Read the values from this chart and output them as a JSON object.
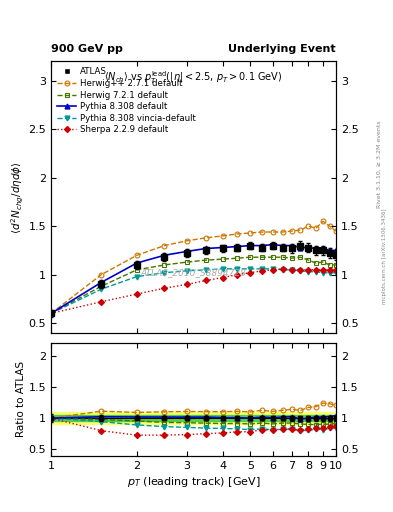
{
  "title_left": "900 GeV pp",
  "title_right": "Underlying Event",
  "watermark": "ATLAS_2010_S8894728",
  "ylabel_main": "$\\langle d^2 N_{chg}/d\\eta d\\phi \\rangle$",
  "ylabel_ratio": "Ratio to ATLAS",
  "xlabel": "$p_T$ (leading track) [GeV]",
  "xlim": [
    1.0,
    10.0
  ],
  "ylim_main": [
    0.4,
    3.2
  ],
  "ylim_ratio": [
    0.4,
    2.2
  ],
  "atlas_x": [
    1.0,
    1.5,
    2.0,
    2.5,
    3.0,
    3.5,
    4.0,
    4.5,
    5.0,
    5.5,
    6.0,
    6.5,
    7.0,
    7.5,
    8.0,
    8.5,
    9.0,
    9.5,
    10.0
  ],
  "atlas_y": [
    0.6,
    0.9,
    1.1,
    1.18,
    1.22,
    1.25,
    1.27,
    1.28,
    1.3,
    1.28,
    1.3,
    1.28,
    1.27,
    1.3,
    1.28,
    1.25,
    1.25,
    1.22,
    1.2
  ],
  "atlas_yerr": [
    0.04,
    0.04,
    0.04,
    0.04,
    0.04,
    0.04,
    0.04,
    0.04,
    0.04,
    0.04,
    0.04,
    0.04,
    0.05,
    0.05,
    0.05,
    0.05,
    0.05,
    0.05,
    0.05
  ],
  "atlas_band_yellow": 0.1,
  "atlas_band_green": 0.05,
  "herwig271_x": [
    1.0,
    1.5,
    2.0,
    2.5,
    3.0,
    3.5,
    4.0,
    4.5,
    5.0,
    5.5,
    6.0,
    6.5,
    7.0,
    7.5,
    8.0,
    8.5,
    9.0,
    9.5,
    10.0
  ],
  "herwig271_y": [
    0.6,
    1.0,
    1.2,
    1.3,
    1.35,
    1.38,
    1.4,
    1.42,
    1.43,
    1.44,
    1.44,
    1.44,
    1.45,
    1.46,
    1.5,
    1.48,
    1.55,
    1.5,
    1.45
  ],
  "herwig721_x": [
    1.0,
    1.5,
    2.0,
    2.5,
    3.0,
    3.5,
    4.0,
    4.5,
    5.0,
    5.5,
    6.0,
    6.5,
    7.0,
    7.5,
    8.0,
    8.5,
    9.0,
    9.5,
    10.0
  ],
  "herwig721_y": [
    0.6,
    0.88,
    1.05,
    1.1,
    1.13,
    1.15,
    1.16,
    1.17,
    1.18,
    1.18,
    1.18,
    1.18,
    1.17,
    1.18,
    1.15,
    1.12,
    1.13,
    1.1,
    1.1
  ],
  "pythia8308_x": [
    1.0,
    1.5,
    2.0,
    2.5,
    3.0,
    3.5,
    4.0,
    4.5,
    5.0,
    5.5,
    6.0,
    6.5,
    7.0,
    7.5,
    8.0,
    8.5,
    9.0,
    9.5,
    10.0
  ],
  "pythia8308_y": [
    0.6,
    0.92,
    1.12,
    1.2,
    1.24,
    1.27,
    1.28,
    1.29,
    1.3,
    1.3,
    1.31,
    1.3,
    1.3,
    1.28,
    1.28,
    1.27,
    1.27,
    1.25,
    1.25
  ],
  "pythia8308v_x": [
    1.0,
    1.5,
    2.0,
    2.5,
    3.0,
    3.5,
    4.0,
    4.5,
    5.0,
    5.5,
    6.0,
    6.5,
    7.0,
    7.5,
    8.0,
    8.5,
    9.0,
    9.5,
    10.0
  ],
  "pythia8308v_y": [
    0.6,
    0.85,
    0.98,
    1.02,
    1.04,
    1.05,
    1.06,
    1.06,
    1.06,
    1.06,
    1.06,
    1.05,
    1.05,
    1.04,
    1.03,
    1.03,
    1.02,
    1.02,
    1.02
  ],
  "sherpa229_x": [
    1.0,
    1.5,
    2.0,
    2.5,
    3.0,
    3.5,
    4.0,
    4.5,
    5.0,
    5.5,
    6.0,
    6.5,
    7.0,
    7.5,
    8.0,
    8.5,
    9.0,
    9.5,
    10.0
  ],
  "sherpa229_y": [
    0.6,
    0.72,
    0.8,
    0.86,
    0.9,
    0.94,
    0.97,
    1.0,
    1.02,
    1.04,
    1.05,
    1.06,
    1.05,
    1.05,
    1.05,
    1.05,
    1.05,
    1.05,
    1.05
  ],
  "color_atlas": "#000000",
  "color_herwig271": "#cc7700",
  "color_herwig721": "#447700",
  "color_pythia8308": "#0000cc",
  "color_pythia8308v": "#009999",
  "color_sherpa229": "#cc0000",
  "color_band_yellow": "#ffff66",
  "color_band_green": "#44cc44",
  "rivet_text": "Rivet 3.1.10, ≥ 3.2M events",
  "mcplots_text": "mcplots.cern.ch [arXiv:1306.3436]"
}
